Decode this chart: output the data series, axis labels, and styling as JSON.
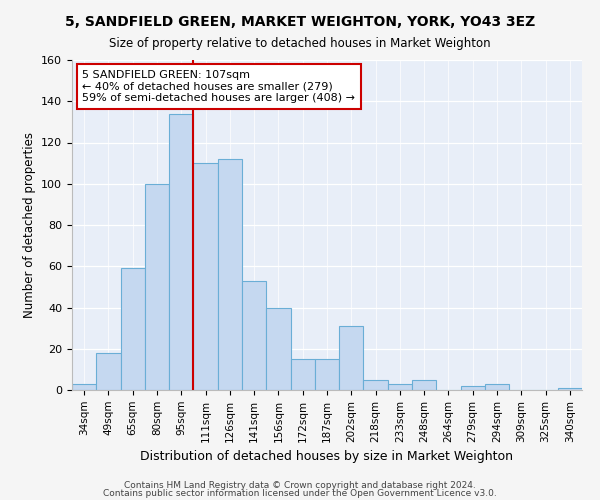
{
  "title": "5, SANDFIELD GREEN, MARKET WEIGHTON, YORK, YO43 3EZ",
  "subtitle": "Size of property relative to detached houses in Market Weighton",
  "xlabel": "Distribution of detached houses by size in Market Weighton",
  "ylabel": "Number of detached properties",
  "categories": [
    "34sqm",
    "49sqm",
    "65sqm",
    "80sqm",
    "95sqm",
    "111sqm",
    "126sqm",
    "141sqm",
    "156sqm",
    "172sqm",
    "187sqm",
    "202sqm",
    "218sqm",
    "233sqm",
    "248sqm",
    "264sqm",
    "279sqm",
    "294sqm",
    "309sqm",
    "325sqm",
    "340sqm"
  ],
  "values": [
    3,
    18,
    59,
    100,
    134,
    110,
    112,
    53,
    40,
    15,
    15,
    31,
    5,
    3,
    5,
    0,
    2,
    3,
    0,
    0,
    1
  ],
  "bar_color": "#c5d8f0",
  "bar_edge_color": "#6aaed6",
  "vline_color": "#cc0000",
  "vline_x_index": 4.5,
  "annotation_text": "5 SANDFIELD GREEN: 107sqm\n← 40% of detached houses are smaller (279)\n59% of semi-detached houses are larger (408) →",
  "annotation_box_color": "#ffffff",
  "annotation_box_edge": "#cc0000",
  "ylim": [
    0,
    160
  ],
  "yticks": [
    0,
    20,
    40,
    60,
    80,
    100,
    120,
    140,
    160
  ],
  "footer1": "Contains HM Land Registry data © Crown copyright and database right 2024.",
  "footer2": "Contains public sector information licensed under the Open Government Licence v3.0.",
  "fig_facecolor": "#f5f5f5",
  "plot_facecolor": "#e8eef8"
}
